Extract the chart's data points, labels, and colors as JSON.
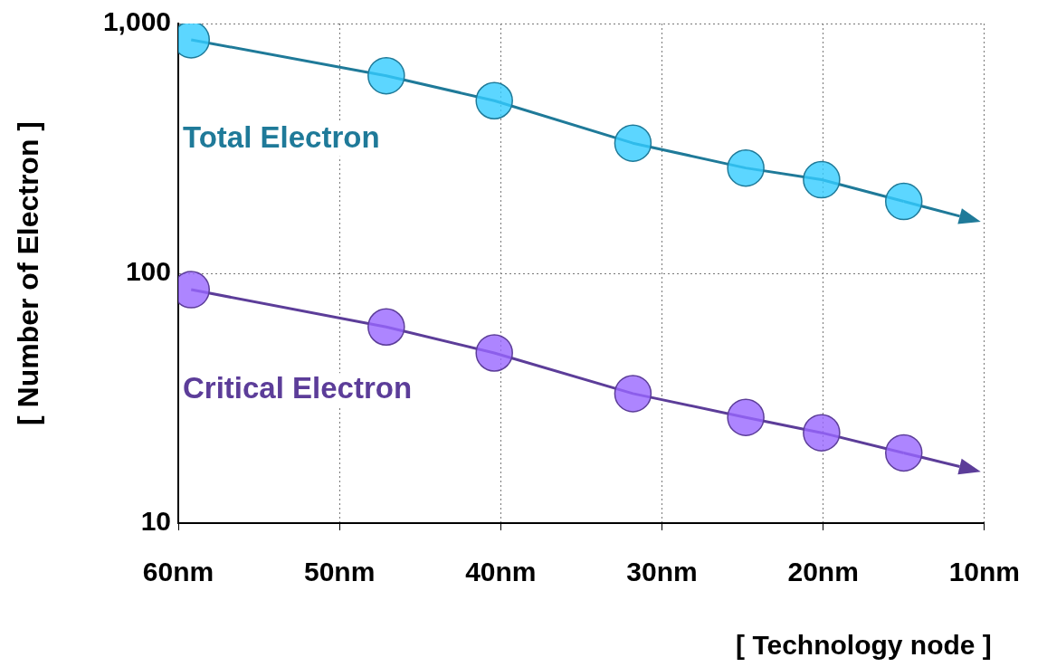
{
  "chart_data": {
    "type": "line",
    "xlabel": "[ Technology node ]",
    "ylabel": "[ Number of Electron ]",
    "x": [
      59.2,
      47.1,
      40.4,
      31.8,
      24.8,
      20.1,
      15
    ],
    "series": [
      {
        "name": "Total Electron",
        "color": "#33ccff",
        "values": [
          861,
          618,
          491,
          332,
          264,
          237,
          194
        ]
      },
      {
        "name": "Critical Electron",
        "color": "#9966ff",
        "values": [
          86,
          61,
          48,
          33,
          26.5,
          23,
          19.1
        ]
      }
    ],
    "xlim": [
      60,
      10
    ],
    "xticks": [
      {
        "value": 60,
        "label": "60nm"
      },
      {
        "value": 50,
        "label": "50nm"
      },
      {
        "value": 40,
        "label": "40nm"
      },
      {
        "value": 30,
        "label": "30nm"
      },
      {
        "value": 20,
        "label": "20nm"
      },
      {
        "value": 10,
        "label": "10nm"
      }
    ],
    "ylim": [
      10,
      1000
    ],
    "yticks": [
      10,
      100,
      {
        "value": 1000,
        "label": "1,000"
      }
    ],
    "log": "y",
    "grid": true,
    "legend": false,
    "marker": "circle",
    "line_style": "solid"
  }
}
